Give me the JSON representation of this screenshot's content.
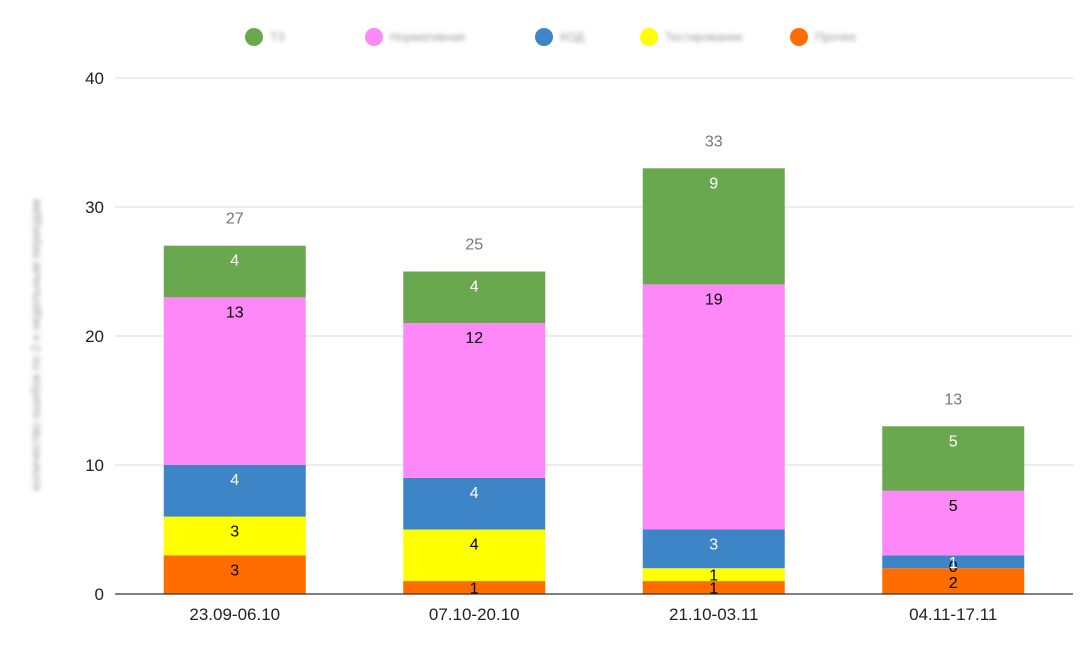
{
  "chart_data": {
    "type": "bar",
    "stacked": true,
    "categories": [
      "23.09-06.10",
      "07.10-20.10",
      "21.10-03.11",
      "04.11-17.11"
    ],
    "series": [
      {
        "name": "Прочее",
        "color": "#ff6d01",
        "label_color": "#000000",
        "values": [
          3,
          1,
          1,
          2
        ]
      },
      {
        "name": "Тестирование",
        "color": "#ffff00",
        "label_color": "#000000",
        "values": [
          3,
          4,
          1,
          0
        ]
      },
      {
        "name": "КОД",
        "color": "#3d85c6",
        "label_color": "#ffffff",
        "values": [
          4,
          4,
          3,
          1
        ]
      },
      {
        "name": "Нормативная",
        "color": "#ff88f8",
        "label_color": "#000000",
        "values": [
          13,
          12,
          19,
          5
        ]
      },
      {
        "name": "ТЗ",
        "color": "#6aa84f",
        "label_color": "#ffffff",
        "values": [
          4,
          4,
          9,
          5
        ]
      }
    ],
    "totals": [
      27,
      25,
      33,
      13
    ],
    "ylim": [
      0,
      40
    ],
    "yticks": [
      "0",
      "10",
      "20",
      "30",
      "40"
    ],
    "ylabel": "количество ошибок по 2-х недельным периодам",
    "xlabel": "",
    "legend_position": "top",
    "grid": true
  }
}
